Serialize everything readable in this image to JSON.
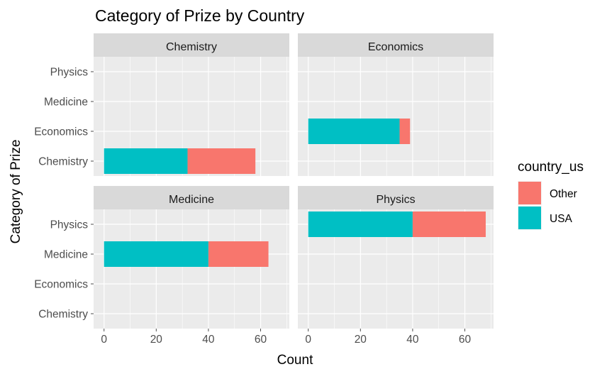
{
  "chart_data": {
    "type": "bar",
    "title": "Category of Prize by Country",
    "xlabel": "Count",
    "ylabel": "Category of Prize",
    "categories": [
      "Chemistry",
      "Economics",
      "Medicine",
      "Physics"
    ],
    "facets": [
      "Chemistry",
      "Economics",
      "Medicine",
      "Physics"
    ],
    "x_ticks": [
      0,
      20,
      40,
      60
    ],
    "xlim": [
      -4,
      71
    ],
    "grid": true,
    "legend_title": "country_us",
    "legend_position": "right",
    "series": [
      {
        "name": "USA",
        "color": "#00BFC4",
        "values_by_facet": [
          32,
          35,
          40,
          40
        ]
      },
      {
        "name": "Other",
        "color": "#F8766D",
        "values_by_facet": [
          26,
          4,
          23,
          28
        ]
      }
    ],
    "legend_entries": [
      {
        "name": "Other",
        "color": "#F8766D"
      },
      {
        "name": "USA",
        "color": "#00BFC4"
      }
    ]
  }
}
